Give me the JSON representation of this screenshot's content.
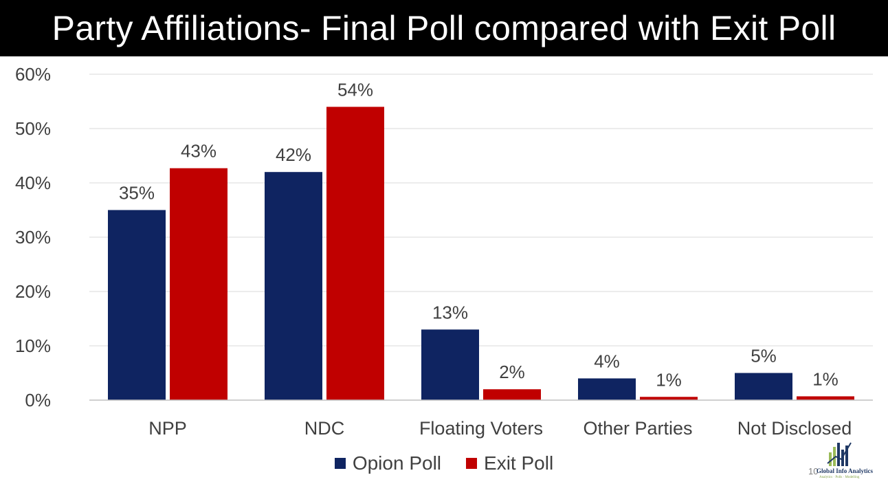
{
  "title": "Party Affiliations- Final Poll compared with Exit Poll",
  "colors": {
    "opinion": "#0f2461",
    "exit": "#c00000",
    "grid": "#d9d9d9",
    "text": "#404040",
    "title_bg": "#000000"
  },
  "chart_data": {
    "type": "bar",
    "categories": [
      "NPP",
      "NDC",
      "Floating Voters",
      "Other Parties",
      "Not Disclosed"
    ],
    "series": [
      {
        "name": "Opion Poll",
        "values": [
          35,
          42,
          13,
          4,
          5
        ],
        "labels": [
          "35%",
          "42%",
          "13%",
          "4%",
          "5%"
        ]
      },
      {
        "name": "Exit Poll",
        "values": [
          42.7,
          54,
          2,
          0.6,
          0.7
        ],
        "labels": [
          "43%",
          "54%",
          "2%",
          "1%",
          "1%"
        ]
      }
    ],
    "ylim": [
      0,
      60
    ],
    "yticks": [
      "0%",
      "10%",
      "20%",
      "30%",
      "40%",
      "50%",
      "60%"
    ],
    "grid": true,
    "legend": "bottom"
  },
  "footer": {
    "page_number": "10",
    "logo_name": "Global Info Analytics",
    "logo_tagline": "Analytics · Polls · Modelling"
  }
}
